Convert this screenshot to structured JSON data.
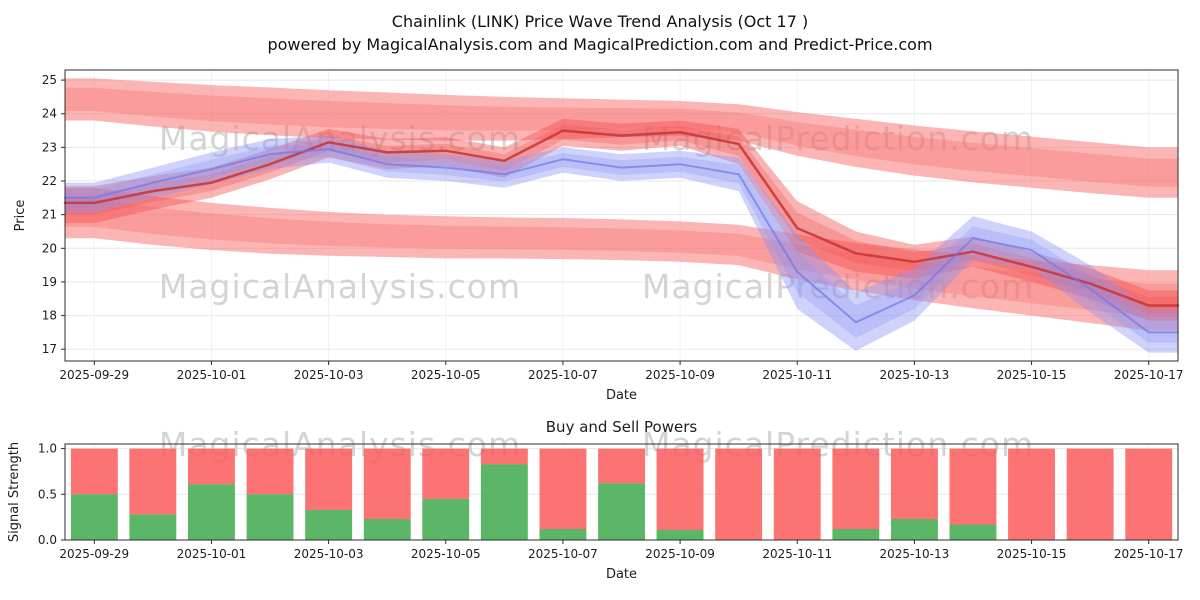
{
  "title": {
    "line1": "Chainlink (LINK) Price Wave Trend Analysis (Oct 17 )",
    "line2": "powered by MagicalAnalysis.com and MagicalPrediction.com and Predict-Price.com"
  },
  "watermarks": [
    "MagicalAnalysis.com",
    "MagicalPrediction.com"
  ],
  "colors": {
    "red_band": "#f96c6c",
    "red_mid": "#f24d4d",
    "red_line": "#c63838",
    "blue_band": "#8d93f2",
    "blue_line": "#7076e8",
    "buy_green": "#44ad52",
    "sell_red": "#fa5a5a",
    "watermark": "#cdcdcd",
    "grid": "#e7e7e7",
    "grid_light": "#f2f2f2",
    "spine": "#2b2b2b",
    "text": "#1d1d1d"
  },
  "chart_data": [
    {
      "type": "area",
      "title": "",
      "xlabel": "Date",
      "ylabel": "Price",
      "xlim": [
        -0.5,
        18.5
      ],
      "ylim": [
        16.65,
        25.3
      ],
      "grid": true,
      "legend": "none",
      "dates": [
        "2025-09-29",
        "2025-09-30",
        "2025-10-01",
        "2025-10-02",
        "2025-10-03",
        "2025-10-04",
        "2025-10-05",
        "2025-10-06",
        "2025-10-07",
        "2025-10-08",
        "2025-10-09",
        "2025-10-10",
        "2025-10-11",
        "2025-10-12",
        "2025-10-13",
        "2025-10-14",
        "2025-10-15",
        "2025-10-16",
        "2025-10-17"
      ],
      "xticks": {
        "idx": [
          0,
          2,
          4,
          6,
          8,
          10,
          12,
          14,
          16,
          18
        ],
        "labels": [
          "2025-09-29",
          "2025-10-01",
          "2025-10-03",
          "2025-10-05",
          "2025-10-07",
          "2025-10-09",
          "2025-10-11",
          "2025-10-13",
          "2025-10-15",
          "2025-10-17"
        ]
      },
      "yticks": {
        "values": [
          17,
          18,
          19,
          20,
          21,
          22,
          23,
          24,
          25
        ],
        "labels": [
          "17",
          "18",
          "19",
          "20",
          "21",
          "22",
          "23",
          "24",
          "25"
        ]
      },
      "series": [
        {
          "name": "upper-forecast-band",
          "kind": "band",
          "color_key": "red_band",
          "opacity": 0.5,
          "upper": [
            25.05,
            24.95,
            24.85,
            24.78,
            24.7,
            24.63,
            24.56,
            24.5,
            24.46,
            24.42,
            24.38,
            24.28,
            24.05,
            23.85,
            23.65,
            23.48,
            23.32,
            23.16,
            23.0
          ],
          "lower": [
            23.8,
            23.62,
            23.47,
            23.36,
            23.28,
            23.23,
            23.2,
            23.2,
            23.24,
            23.3,
            23.34,
            23.2,
            22.75,
            22.42,
            22.16,
            21.96,
            21.8,
            21.64,
            21.5
          ]
        },
        {
          "name": "lower-forecast-band",
          "kind": "band",
          "color_key": "red_band",
          "opacity": 0.5,
          "upper": [
            21.8,
            21.55,
            21.35,
            21.2,
            21.08,
            21.0,
            20.95,
            20.92,
            20.9,
            20.86,
            20.8,
            20.7,
            20.42,
            20.16,
            19.96,
            19.8,
            19.64,
            19.5,
            19.35
          ],
          "lower": [
            20.3,
            20.1,
            19.95,
            19.84,
            19.78,
            19.74,
            19.7,
            19.7,
            19.68,
            19.65,
            19.6,
            19.5,
            19.08,
            18.74,
            18.46,
            18.22,
            18.0,
            17.78,
            17.55
          ]
        },
        {
          "name": "price-wave-band",
          "kind": "band",
          "color_key": "red_mid",
          "opacity": 0.42,
          "upper": [
            21.85,
            22.15,
            22.4,
            22.95,
            23.55,
            23.25,
            23.3,
            23.0,
            23.85,
            23.7,
            23.8,
            23.55,
            21.4,
            20.5,
            20.1,
            20.35,
            19.9,
            19.4,
            18.75
          ],
          "lower": [
            20.75,
            21.15,
            21.5,
            22.05,
            22.7,
            22.35,
            22.45,
            22.1,
            23.05,
            22.9,
            23.05,
            22.5,
            19.9,
            19.3,
            19.1,
            19.45,
            19.0,
            18.5,
            17.85
          ]
        },
        {
          "name": "blue-wave-band",
          "kind": "band",
          "color_key": "blue_band",
          "opacity": 0.42,
          "upper": [
            21.95,
            22.4,
            22.85,
            23.25,
            23.35,
            22.9,
            22.8,
            22.6,
            23.0,
            22.8,
            22.9,
            22.7,
            20.4,
            18.7,
            19.4,
            20.95,
            20.5,
            19.5,
            18.2
          ],
          "lower": [
            21.05,
            21.5,
            21.9,
            22.35,
            22.55,
            22.1,
            22.0,
            21.8,
            22.25,
            22.0,
            22.1,
            21.7,
            18.2,
            16.95,
            17.85,
            19.65,
            19.4,
            18.1,
            16.9
          ]
        },
        {
          "name": "price-wave-line",
          "kind": "line",
          "color_key": "red_line",
          "opacity": 0.9,
          "width": 2.5,
          "values": [
            21.35,
            21.7,
            21.95,
            22.5,
            23.15,
            22.85,
            22.9,
            22.6,
            23.5,
            23.35,
            23.45,
            23.1,
            20.6,
            19.85,
            19.6,
            19.9,
            19.45,
            18.95,
            18.3
          ]
        },
        {
          "name": "blue-wave-line",
          "kind": "line",
          "color_key": "blue_line",
          "opacity": 0.7,
          "width": 2,
          "values": [
            21.5,
            21.95,
            22.35,
            22.8,
            22.95,
            22.5,
            22.4,
            22.2,
            22.65,
            22.4,
            22.5,
            22.2,
            19.3,
            17.8,
            18.6,
            20.3,
            19.95,
            18.8,
            17.5
          ]
        }
      ]
    },
    {
      "type": "bar",
      "stacked": true,
      "title": "Buy and Sell Powers",
      "xlabel": "Date",
      "ylabel": "Signal Strength",
      "xlim": [
        -0.5,
        18.5
      ],
      "ylim": [
        0,
        1.05
      ],
      "bar_width": 0.8,
      "grid": true,
      "legend": "none",
      "categories": [
        "2025-09-29",
        "2025-09-30",
        "2025-10-01",
        "2025-10-02",
        "2025-10-03",
        "2025-10-04",
        "2025-10-05",
        "2025-10-06",
        "2025-10-07",
        "2025-10-08",
        "2025-10-09",
        "2025-10-10",
        "2025-10-11",
        "2025-10-12",
        "2025-10-13",
        "2025-10-14",
        "2025-10-15",
        "2025-10-16",
        "2025-10-17"
      ],
      "xticks": {
        "idx": [
          0,
          2,
          4,
          6,
          8,
          10,
          12,
          14,
          16,
          18
        ],
        "labels": [
          "2025-09-29",
          "2025-10-01",
          "2025-10-03",
          "2025-10-05",
          "2025-10-07",
          "2025-10-09",
          "2025-10-11",
          "2025-10-13",
          "2025-10-15",
          "2025-10-17"
        ]
      },
      "yticks": {
        "values": [
          0,
          0.5,
          1.0
        ],
        "labels": [
          "0.0",
          "0.5",
          "1.0"
        ]
      },
      "series": [
        {
          "name": "Buy",
          "color_key": "buy_green",
          "opacity": 0.88,
          "values": [
            0.5,
            0.28,
            0.61,
            0.5,
            0.33,
            0.23,
            0.45,
            0.83,
            0.12,
            0.62,
            0.11,
            0,
            0,
            0.12,
            0.23,
            0.17,
            0,
            0,
            0
          ]
        },
        {
          "name": "Sell",
          "color_key": "sell_red",
          "opacity": 0.85,
          "values": [
            0.5,
            0.72,
            0.39,
            0.5,
            0.67,
            0.77,
            0.55,
            0.17,
            0.88,
            0.38,
            0.89,
            1,
            1,
            0.88,
            0.77,
            0.83,
            1,
            1,
            1
          ]
        }
      ]
    }
  ]
}
